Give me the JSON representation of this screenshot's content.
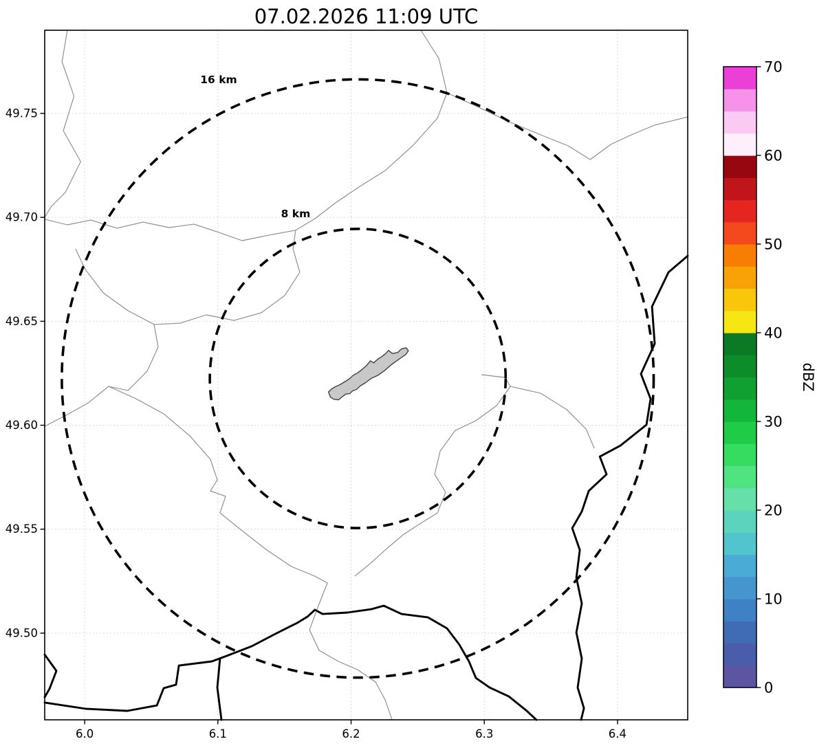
{
  "title": "07.02.2026 11:09 UTC",
  "colorbar": {
    "label": "dBZ",
    "unit_min": 0,
    "unit_max": 70,
    "tick_values": [
      0,
      10,
      20,
      30,
      40,
      50,
      60,
      70
    ],
    "tick_labels": [
      "0",
      "10",
      "20",
      "30",
      "40",
      "50",
      "60",
      "70"
    ],
    "band_step_dbz": 2.5,
    "colors_bottom_to_top": [
      "#5c55a2",
      "#4a5dab",
      "#3f6cb5",
      "#3e81c4",
      "#4596ce",
      "#4babd7",
      "#52c4cc",
      "#5bd4be",
      "#66e0a8",
      "#4fe382",
      "#35dc60",
      "#1fcc48",
      "#12b63a",
      "#0fa031",
      "#0d8c2a",
      "#0b7a24",
      "#f5e614",
      "#f8c70b",
      "#f9a206",
      "#f87d02",
      "#f4491f",
      "#e42520",
      "#c0161b",
      "#97070f",
      "#fdeffb",
      "#fbc9f4",
      "#f792ea",
      "#ec3fd8"
    ]
  },
  "axes": {
    "x_tick_values": [
      6.0,
      6.1,
      6.2,
      6.3,
      6.4
    ],
    "x_tick_labels": [
      "6.0",
      "6.1",
      "6.2",
      "6.3",
      "6.4"
    ],
    "y_tick_values": [
      49.5,
      49.55,
      49.6,
      49.65,
      49.7,
      49.75
    ],
    "y_tick_labels": [
      "49.50",
      "49.55",
      "49.60",
      "49.65",
      "49.70",
      "49.75"
    ],
    "lon_range": [
      5.97,
      6.4527
    ],
    "lat_range": [
      49.4583,
      49.79
    ]
  },
  "radar": {
    "center_lon": 6.205,
    "center_lat": 49.6225,
    "range_rings": [
      {
        "label": "8 km",
        "radius_km": 8,
        "label_lon": 6.1584,
        "label_lat": 49.7
      },
      {
        "label": "16 km",
        "radius_km": 16,
        "label_lon": 6.1006,
        "label_lat": 49.7645
      }
    ]
  },
  "map_features": {
    "urban_area_polygon": [
      [
        6.183,
        49.616
      ],
      [
        6.1845,
        49.6135
      ],
      [
        6.187,
        49.6125
      ],
      [
        6.1905,
        49.6122
      ],
      [
        6.193,
        49.6135
      ],
      [
        6.196,
        49.615
      ],
      [
        6.199,
        49.6152
      ],
      [
        6.201,
        49.6165
      ],
      [
        6.204,
        49.6172
      ],
      [
        6.207,
        49.619
      ],
      [
        6.211,
        49.6205
      ],
      [
        6.215,
        49.6225
      ],
      [
        6.22,
        49.624
      ],
      [
        6.225,
        49.6262
      ],
      [
        6.23,
        49.629
      ],
      [
        6.236,
        49.6318
      ],
      [
        6.241,
        49.634
      ],
      [
        6.243,
        49.6358
      ],
      [
        6.2415,
        49.6372
      ],
      [
        6.238,
        49.6368
      ],
      [
        6.235,
        49.635
      ],
      [
        6.231,
        49.6345
      ],
      [
        6.228,
        49.636
      ],
      [
        6.226,
        49.6345
      ],
      [
        6.223,
        49.633
      ],
      [
        6.22,
        49.6318
      ],
      [
        6.217,
        49.63
      ],
      [
        6.2145,
        49.631
      ],
      [
        6.212,
        49.629
      ],
      [
        6.2085,
        49.627
      ],
      [
        6.205,
        49.6252
      ],
      [
        6.2015,
        49.624
      ],
      [
        6.1985,
        49.6222
      ],
      [
        6.195,
        49.6208
      ],
      [
        6.1915,
        49.6195
      ],
      [
        6.188,
        49.6185
      ],
      [
        6.1855,
        49.6175
      ]
    ],
    "thin_boundary_lines": [
      [
        [
          5.987,
          49.79
        ],
        [
          5.983,
          49.7748
        ],
        [
          5.992,
          49.7583
        ],
        [
          5.984,
          49.7417
        ],
        [
          5.997,
          49.7268
        ],
        [
          5.9855,
          49.712
        ],
        [
          5.975,
          49.7053
        ],
        [
          5.97,
          49.7001
        ]
      ],
      [
        [
          6.2524,
          49.79
        ],
        [
          6.2659,
          49.7764
        ],
        [
          6.272,
          49.7599
        ],
        [
          6.2648,
          49.7477
        ],
        [
          6.2462,
          49.7344
        ],
        [
          6.2256,
          49.7225
        ],
        [
          6.2059,
          49.7146
        ],
        [
          6.1884,
          49.707
        ],
        [
          6.1729,
          49.6994
        ],
        [
          6.1584,
          49.6938
        ]
      ],
      [
        [
          6.1584,
          49.6938
        ],
        [
          6.1388,
          49.6915
        ],
        [
          6.1182,
          49.6888
        ],
        [
          6.1006,
          49.6928
        ],
        [
          6.082,
          49.6967
        ],
        [
          6.0634,
          49.6951
        ],
        [
          6.0438,
          49.6977
        ],
        [
          6.0242,
          49.6948
        ],
        [
          6.0046,
          49.6987
        ],
        [
          5.987,
          49.6964
        ],
        [
          5.97,
          49.6991
        ]
      ],
      [
        [
          6.1584,
          49.6938
        ],
        [
          6.1564,
          49.6848
        ],
        [
          6.1615,
          49.6736
        ],
        [
          6.1502,
          49.6624
        ],
        [
          6.1326,
          49.6541
        ],
        [
          6.112,
          49.6504
        ],
        [
          6.0913,
          49.6531
        ],
        [
          6.0717,
          49.6491
        ],
        [
          6.0521,
          49.6485
        ],
        [
          6.0325,
          49.6551
        ],
        [
          6.0139,
          49.6637
        ],
        [
          6.0005,
          49.6749
        ],
        [
          5.9932,
          49.6848
        ]
      ],
      [
        [
          6.0521,
          49.6485
        ],
        [
          6.0552,
          49.6376
        ],
        [
          6.0469,
          49.626
        ],
        [
          6.0325,
          49.6167
        ],
        [
          6.018,
          49.6187
        ],
        [
          6.0025,
          49.6107
        ],
        [
          5.986,
          49.6048
        ],
        [
          5.97,
          49.5995
        ]
      ],
      [
        [
          6.018,
          49.6187
        ],
        [
          6.0387,
          49.6127
        ],
        [
          6.0593,
          49.6055
        ],
        [
          6.0789,
          49.5949
        ],
        [
          6.0944,
          49.5836
        ],
        [
          6.0996,
          49.5737
        ],
        [
          6.0944,
          49.5684
        ],
        [
          6.1058,
          49.5658
        ],
        [
          6.1016,
          49.5578
        ],
        [
          6.1182,
          49.5492
        ],
        [
          6.1367,
          49.54
        ],
        [
          6.1553,
          49.532
        ],
        [
          6.1729,
          49.5274
        ],
        [
          6.1822,
          49.5241
        ],
        [
          6.1749,
          49.5122
        ],
        [
          6.1688,
          49.5016
        ],
        [
          6.176,
          49.4917
        ],
        [
          6.1904,
          49.4864
        ],
        [
          6.2049,
          49.4824
        ],
        [
          6.2183,
          49.4765
        ],
        [
          6.2256,
          49.4679
        ],
        [
          6.2307,
          49.4583
        ]
      ],
      [
        [
          6.2979,
          49.6243
        ],
        [
          6.3154,
          49.623
        ],
        [
          6.3196,
          49.6187
        ],
        [
          6.3092,
          49.6094
        ],
        [
          6.2937,
          49.6022
        ],
        [
          6.2782,
          49.5975
        ],
        [
          6.2669,
          49.5876
        ],
        [
          6.2627,
          49.5764
        ],
        [
          6.271,
          49.5678
        ],
        [
          6.2648,
          49.5578
        ],
        [
          6.2514,
          49.5525
        ],
        [
          6.239,
          49.5473
        ],
        [
          6.2256,
          49.54
        ],
        [
          6.2142,
          49.5334
        ],
        [
          6.2028,
          49.5274
        ]
      ],
      [
        [
          6.3196,
          49.6187
        ],
        [
          6.3423,
          49.6154
        ],
        [
          6.3619,
          49.6075
        ],
        [
          6.3764,
          49.5982
        ],
        [
          6.3826,
          49.5889
        ]
      ],
      [
        [
          6.272,
          49.7599
        ],
        [
          6.2979,
          49.7523
        ],
        [
          6.3196,
          49.7457
        ],
        [
          6.3423,
          49.7397
        ],
        [
          6.363,
          49.7344
        ],
        [
          6.3795,
          49.7278
        ],
        [
          6.395,
          49.7351
        ],
        [
          6.4104,
          49.7397
        ],
        [
          6.428,
          49.7444
        ],
        [
          6.4527,
          49.7483
        ]
      ]
    ],
    "thick_border_lines": [
      [
        [
          6.4527,
          49.6815
        ],
        [
          6.4383,
          49.6736
        ],
        [
          6.4259,
          49.6571
        ],
        [
          6.4279,
          49.6392
        ],
        [
          6.4176,
          49.6247
        ],
        [
          6.4248,
          49.6127
        ],
        [
          6.4217,
          49.6002
        ],
        [
          6.4021,
          49.5902
        ],
        [
          6.3867,
          49.5849
        ],
        [
          6.3918,
          49.5764
        ],
        [
          6.3784,
          49.5684
        ],
        [
          6.3732,
          49.5585
        ],
        [
          6.366,
          49.5505
        ],
        [
          6.3717,
          49.54
        ],
        [
          6.3691,
          49.5267
        ],
        [
          6.3732,
          49.5142
        ],
        [
          6.3691,
          49.5003
        ],
        [
          6.3732,
          49.4877
        ],
        [
          6.3701,
          49.4738
        ],
        [
          6.3748,
          49.4639
        ],
        [
          6.3727,
          49.4583
        ]
      ],
      [
        [
          5.97,
          49.4666
        ],
        [
          6.001,
          49.4636
        ],
        [
          6.032,
          49.4626
        ],
        [
          6.0542,
          49.4652
        ],
        [
          6.0593,
          49.4735
        ],
        [
          6.0686,
          49.4752
        ],
        [
          6.0707,
          49.4844
        ],
        [
          6.0955,
          49.4864
        ],
        [
          6.1068,
          49.4891
        ],
        [
          6.1254,
          49.4937
        ],
        [
          6.143,
          49.4996
        ],
        [
          6.1595,
          49.5049
        ],
        [
          6.1672,
          49.5079
        ],
        [
          6.1729,
          49.5112
        ],
        [
          6.1786,
          49.5092
        ],
        [
          6.1972,
          49.5099
        ],
        [
          6.2152,
          49.5115
        ],
        [
          6.2245,
          49.5132
        ],
        [
          6.2379,
          49.5092
        ],
        [
          6.2576,
          49.5076
        ],
        [
          6.272,
          49.5023
        ],
        [
          6.2813,
          49.4944
        ],
        [
          6.2885,
          49.4864
        ],
        [
          6.2937,
          49.4784
        ],
        [
          6.304,
          49.4738
        ],
        [
          6.3185,
          49.4695
        ],
        [
          6.3319,
          49.4626
        ],
        [
          6.3391,
          49.4583
        ]
      ],
      [
        [
          6.1016,
          49.4877
        ],
        [
          6.0996,
          49.4738
        ],
        [
          6.1027,
          49.4583
        ]
      ],
      [
        [
          5.97,
          49.4897
        ],
        [
          5.9788,
          49.4818
        ],
        [
          5.9736,
          49.4732
        ],
        [
          5.97,
          49.4692
        ]
      ]
    ]
  },
  "style": {
    "background": "#ffffff",
    "ring_color": "#000000",
    "thin_line_color": "#8c8c8c",
    "thick_line_color": "#000000",
    "urban_fill": "#c8c8c8",
    "urban_stroke": "#404040",
    "grid_color": "#d0d0d0"
  }
}
